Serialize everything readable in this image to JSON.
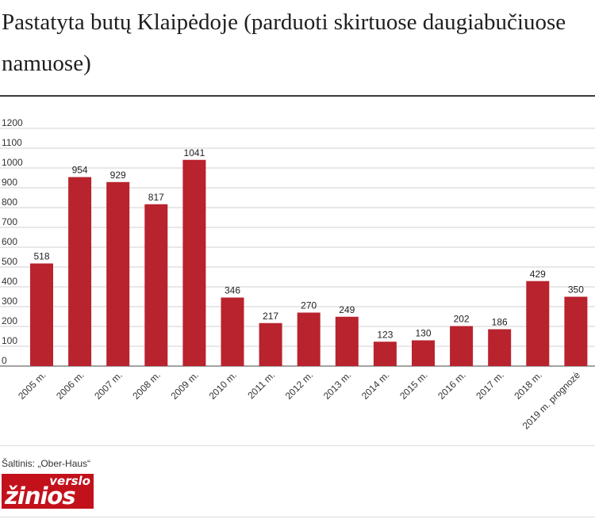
{
  "title": "Pastatyta butų Klaipėdoje (parduoti skirtuose daugiabučiuose namuose)",
  "source": "Šaltinis: „Ober-Haus“",
  "logo": {
    "line1": "verslo",
    "line2": "žinios"
  },
  "colors": {
    "bar": "#b8232e",
    "grid": "#d0d0d0",
    "axis": "#444444"
  },
  "chart_data": {
    "type": "bar",
    "title": "Pastatyta butų Klaipėdoje (parduoti skirtuose daugiabučiuose namuose)",
    "categories": [
      "2005 m.",
      "2006 m.",
      "2007 m.",
      "2008 m.",
      "2009 m.",
      "2010 m.",
      "2011 m.",
      "2012 m.",
      "2013 m.",
      "2014 m.",
      "2015 m.",
      "2016 m.",
      "2017 m.",
      "2018 m.",
      "2019 m. prognozė"
    ],
    "values": [
      518,
      954,
      929,
      817,
      1041,
      346,
      217,
      270,
      249,
      123,
      130,
      202,
      186,
      429,
      350
    ],
    "yticks": [
      "0",
      "100",
      "200",
      "300",
      "400",
      "500",
      "600",
      "700",
      "800",
      "900",
      "1000",
      "1100",
      "1200"
    ],
    "ylim": [
      0,
      1200
    ],
    "grid": true,
    "data_labels": true
  }
}
